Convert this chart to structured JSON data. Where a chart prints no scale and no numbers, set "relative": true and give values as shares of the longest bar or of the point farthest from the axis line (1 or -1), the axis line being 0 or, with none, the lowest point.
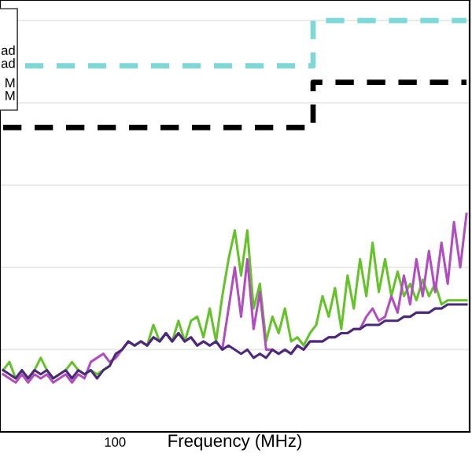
{
  "chart_data": {
    "type": "line",
    "xlabel": "Frequency (MHz)",
    "relative": true,
    "grid": true,
    "annotations": [
      "ad",
      "ad",
      "M",
      "M",
      "100"
    ],
    "categories": [
      null,
      null,
      null,
      null,
      null,
      null,
      null,
      null,
      null,
      null,
      null,
      null,
      null,
      null,
      null,
      null,
      null,
      null,
      null,
      null,
      null,
      null,
      null,
      null,
      null,
      null,
      null,
      null,
      null,
      null,
      null,
      null,
      null,
      null,
      null,
      null,
      null,
      null,
      null,
      null,
      null,
      null,
      null,
      null,
      null,
      null,
      null,
      null,
      null,
      null,
      null,
      null,
      null,
      null,
      null,
      null,
      null,
      null,
      null,
      null,
      null,
      null,
      null,
      null,
      null,
      null,
      null,
      null,
      null,
      null,
      null,
      null,
      null,
      null,
      null
    ],
    "series": [
      {
        "type": "step",
        "color": "#7fd8d8",
        "line_style": "dashed",
        "values": [
          null,
          null,
          null,
          null,
          0.89,
          0.89,
          0.89,
          0.89,
          0.89,
          0.89,
          0.89,
          0.89,
          0.89,
          0.89,
          0.89,
          0.89,
          0.89,
          0.89,
          0.89,
          0.89,
          0.89,
          0.89,
          0.89,
          0.89,
          0.89,
          0.89,
          0.89,
          0.89,
          0.89,
          0.89,
          0.89,
          0.89,
          0.89,
          0.89,
          0.89,
          0.89,
          0.89,
          0.89,
          0.89,
          0.89,
          0.89,
          0.89,
          0.89,
          0.89,
          0.89,
          0.89,
          0.89,
          0.89,
          0.89,
          0.89,
          1.0,
          1.0,
          1.0,
          1.0,
          1.0,
          1.0,
          1.0,
          1.0,
          1.0,
          1.0,
          1.0,
          1.0,
          1.0,
          1.0,
          1.0,
          1.0,
          1.0,
          1.0,
          1.0,
          1.0,
          1.0,
          1.0,
          1.0,
          1.0,
          1.0
        ]
      },
      {
        "type": "step",
        "color": "#000000",
        "line_style": "dashed",
        "values": [
          0.74,
          0.74,
          0.74,
          0.74,
          0.74,
          0.74,
          0.74,
          0.74,
          0.74,
          0.74,
          0.74,
          0.74,
          0.74,
          0.74,
          0.74,
          0.74,
          0.74,
          0.74,
          0.74,
          0.74,
          0.74,
          0.74,
          0.74,
          0.74,
          0.74,
          0.74,
          0.74,
          0.74,
          0.74,
          0.74,
          0.74,
          0.74,
          0.74,
          0.74,
          0.74,
          0.74,
          0.74,
          0.74,
          0.74,
          0.74,
          0.74,
          0.74,
          0.74,
          0.74,
          0.74,
          0.74,
          0.74,
          0.74,
          0.74,
          0.74,
          0.85,
          0.85,
          0.85,
          0.85,
          0.85,
          0.85,
          0.85,
          0.85,
          0.85,
          0.85,
          0.85,
          0.85,
          0.85,
          0.85,
          0.85,
          0.85,
          0.85,
          0.85,
          0.85,
          0.85,
          0.85,
          0.85,
          0.85,
          0.85,
          0.85
        ]
      },
      {
        "color": "#66c22a",
        "values": [
          0.15,
          0.17,
          0.13,
          0.15,
          0.13,
          0.15,
          0.18,
          0.15,
          0.13,
          0.14,
          0.15,
          0.17,
          0.15,
          0.14,
          0.15,
          0.14,
          0.15,
          0.16,
          0.19,
          0.2,
          0.22,
          0.21,
          0.22,
          0.21,
          0.26,
          0.22,
          0.24,
          0.22,
          0.27,
          0.22,
          0.27,
          0.28,
          0.23,
          0.3,
          0.22,
          0.33,
          0.42,
          0.49,
          0.38,
          0.49,
          0.3,
          0.36,
          0.22,
          0.28,
          0.24,
          0.3,
          0.22,
          0.23,
          0.21,
          0.24,
          0.26,
          0.33,
          0.28,
          0.35,
          0.25,
          0.38,
          0.3,
          0.42,
          0.33,
          0.46,
          0.34,
          0.42,
          0.33,
          0.39,
          0.33,
          0.36,
          0.32,
          0.37,
          0.33,
          0.36,
          0.31,
          0.32,
          0.32,
          0.32,
          0.32
        ]
      },
      {
        "color": "#b04ec0",
        "values": [
          0.14,
          0.13,
          0.12,
          0.14,
          0.12,
          0.14,
          0.13,
          0.14,
          0.12,
          0.13,
          0.14,
          0.12,
          0.14,
          0.13,
          0.17,
          0.18,
          0.19,
          0.17,
          0.18,
          0.2,
          0.22,
          0.21,
          0.22,
          0.21,
          0.23,
          0.22,
          0.24,
          0.22,
          0.24,
          0.22,
          0.23,
          0.21,
          0.22,
          0.21,
          0.22,
          0.2,
          0.3,
          0.4,
          0.28,
          0.42,
          0.25,
          0.34,
          0.2,
          0.2,
          0.19,
          0.2,
          0.19,
          0.21,
          0.2,
          0.22,
          0.22,
          0.22,
          0.23,
          0.23,
          0.24,
          0.24,
          0.25,
          0.25,
          0.28,
          0.3,
          0.27,
          0.28,
          0.33,
          0.29,
          0.38,
          0.31,
          0.42,
          0.33,
          0.44,
          0.34,
          0.46,
          0.36,
          0.51,
          0.4,
          0.53
        ]
      },
      {
        "color": "#4b2a7a",
        "values": [
          0.15,
          0.14,
          0.13,
          0.15,
          0.13,
          0.15,
          0.14,
          0.15,
          0.13,
          0.14,
          0.15,
          0.13,
          0.15,
          0.14,
          0.15,
          0.13,
          0.15,
          0.16,
          0.19,
          0.2,
          0.22,
          0.21,
          0.22,
          0.21,
          0.23,
          0.22,
          0.24,
          0.22,
          0.24,
          0.22,
          0.23,
          0.21,
          0.22,
          0.21,
          0.22,
          0.2,
          0.21,
          0.2,
          0.19,
          0.2,
          0.18,
          0.19,
          0.18,
          0.2,
          0.19,
          0.2,
          0.19,
          0.21,
          0.2,
          0.22,
          0.22,
          0.22,
          0.23,
          0.23,
          0.24,
          0.24,
          0.25,
          0.25,
          0.26,
          0.26,
          0.26,
          0.27,
          0.27,
          0.27,
          0.28,
          0.28,
          0.29,
          0.29,
          0.29,
          0.3,
          0.3,
          0.31,
          0.31,
          0.31,
          0.31
        ]
      }
    ]
  }
}
